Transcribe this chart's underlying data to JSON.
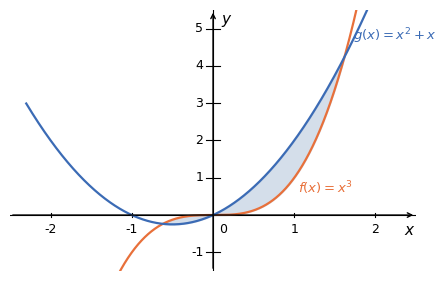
{
  "xlim": [
    -2.5,
    2.5
  ],
  "ylim": [
    -1.5,
    5.5
  ],
  "xticks": [
    -2,
    -1,
    1,
    2
  ],
  "yticks": [
    -1,
    1,
    2,
    3,
    4,
    5
  ],
  "f_color": "#E8703A",
  "g_color": "#3B6BB5",
  "shade_color": "#B8C8DC",
  "shade_alpha": 0.6,
  "f_label": "$f(x) = x^3$",
  "g_label": "$g(x) = x^2 + x$",
  "xlabel": "$x$",
  "ylabel": "$y$",
  "x_plot_min": -2.3,
  "x_plot_max": 2.15,
  "tick_fontsize": 9,
  "label_fontsize": 11,
  "func_label_fontsize": 9.5
}
